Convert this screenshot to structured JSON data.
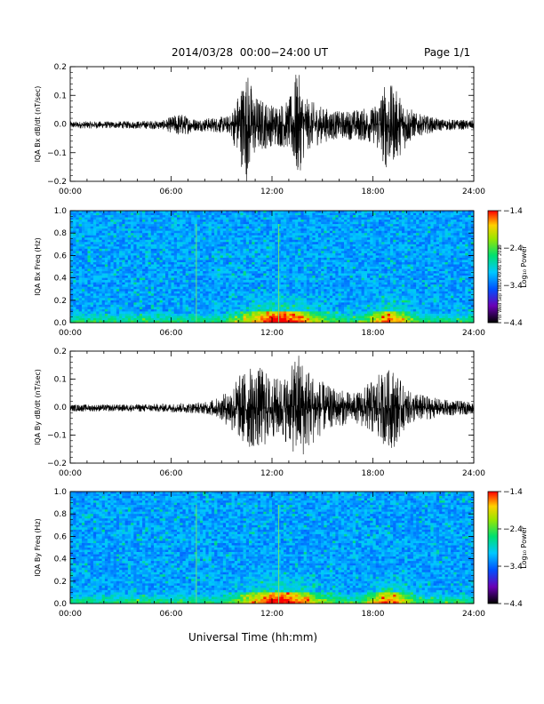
{
  "header": {
    "title": "2014/03/28  00:00−24:00 UT",
    "page": "Page 1/1"
  },
  "xaxis_title": "Universal Time (hh:mm)",
  "side_stamp": "rbl Wed Sep 18 19:49:46 UT 2019",
  "chart_data": [
    {
      "type": "line",
      "ylabel": "IQA Bx dB/dt (nT/sec)",
      "xlim": [
        0,
        24
      ],
      "ylim": [
        -0.2,
        0.2
      ],
      "yticks": [
        -0.2,
        -0.1,
        0.0,
        0.1,
        0.2
      ],
      "ytick_labels": [
        "−0.2",
        "−0.1",
        "0.0",
        "0.1",
        "0.2"
      ],
      "xtick_labels": [
        "00:00",
        "06:00",
        "12:00",
        "18:00",
        "24:00"
      ],
      "activity_envelope": {
        "hours": [
          0,
          3,
          5.5,
          6.5,
          7.5,
          9.5,
          10.5,
          11,
          12,
          13,
          13.5,
          14,
          15,
          16,
          18,
          18.8,
          19.5,
          20.5,
          22,
          24
        ],
        "amplitude": [
          0.012,
          0.012,
          0.015,
          0.04,
          0.02,
          0.03,
          0.19,
          0.1,
          0.07,
          0.08,
          0.19,
          0.09,
          0.06,
          0.045,
          0.06,
          0.15,
          0.11,
          0.04,
          0.02,
          0.015
        ]
      }
    },
    {
      "type": "heatmap",
      "ylabel": "IQA Bx Freq (Hz)",
      "xlim": [
        0,
        24
      ],
      "ylim": [
        0,
        1.0
      ],
      "yticks": [
        0.0,
        0.2,
        0.4,
        0.6,
        0.8,
        1.0
      ],
      "ytick_labels": [
        "0.0",
        "0.2",
        "0.4",
        "0.6",
        "0.8",
        "1.0"
      ],
      "xtick_labels": [
        "00:00",
        "06:00",
        "12:00",
        "18:00",
        "24:00"
      ],
      "colorbar": {
        "label": "Log₁₀ Power",
        "range": [
          -4.4,
          -1.4
        ],
        "tick_labels": [
          "−1.4",
          "−2.4",
          "−3.4",
          "−4.4"
        ],
        "tick_values": [
          -1.4,
          -2.4,
          -3.4,
          -4.4
        ]
      },
      "vertical_lines_hours": [
        7.5,
        12.4
      ]
    },
    {
      "type": "line",
      "ylabel": "IQA By dB/dt (nT/sec)",
      "xlim": [
        0,
        24
      ],
      "ylim": [
        -0.2,
        0.2
      ],
      "yticks": [
        -0.2,
        -0.1,
        0.0,
        0.1,
        0.2
      ],
      "ytick_labels": [
        "−0.2",
        "−0.1",
        "0.0",
        "0.1",
        "0.2"
      ],
      "xtick_labels": [
        "00:00",
        "06:00",
        "12:00",
        "18:00",
        "24:00"
      ],
      "activity_envelope": {
        "hours": [
          0,
          3,
          6,
          8,
          9,
          10,
          10.5,
          11.5,
          12,
          13,
          13.6,
          14,
          15,
          15.5,
          17,
          18.5,
          19.2,
          20,
          22,
          24
        ],
        "amplitude": [
          0.012,
          0.012,
          0.015,
          0.02,
          0.04,
          0.11,
          0.14,
          0.14,
          0.1,
          0.12,
          0.2,
          0.15,
          0.09,
          0.07,
          0.05,
          0.12,
          0.14,
          0.06,
          0.03,
          0.02
        ]
      }
    },
    {
      "type": "heatmap",
      "ylabel": "IQA By Freq (Hz)",
      "xlim": [
        0,
        24
      ],
      "ylim": [
        0,
        1.0
      ],
      "yticks": [
        0.0,
        0.2,
        0.4,
        0.6,
        0.8,
        1.0
      ],
      "ytick_labels": [
        "0.0",
        "0.2",
        "0.4",
        "0.6",
        "0.8",
        "1.0"
      ],
      "xtick_labels": [
        "00:00",
        "06:00",
        "12:00",
        "18:00",
        "24:00"
      ],
      "colorbar": {
        "label": "Log₁₀ Power",
        "range": [
          -4.4,
          -1.4
        ],
        "tick_labels": [
          "−1.4",
          "−2.4",
          "−3.4",
          "−4.4"
        ],
        "tick_values": [
          -1.4,
          -2.4,
          -3.4,
          -4.4
        ]
      },
      "vertical_lines_hours": [
        7.5,
        12.4
      ]
    }
  ]
}
